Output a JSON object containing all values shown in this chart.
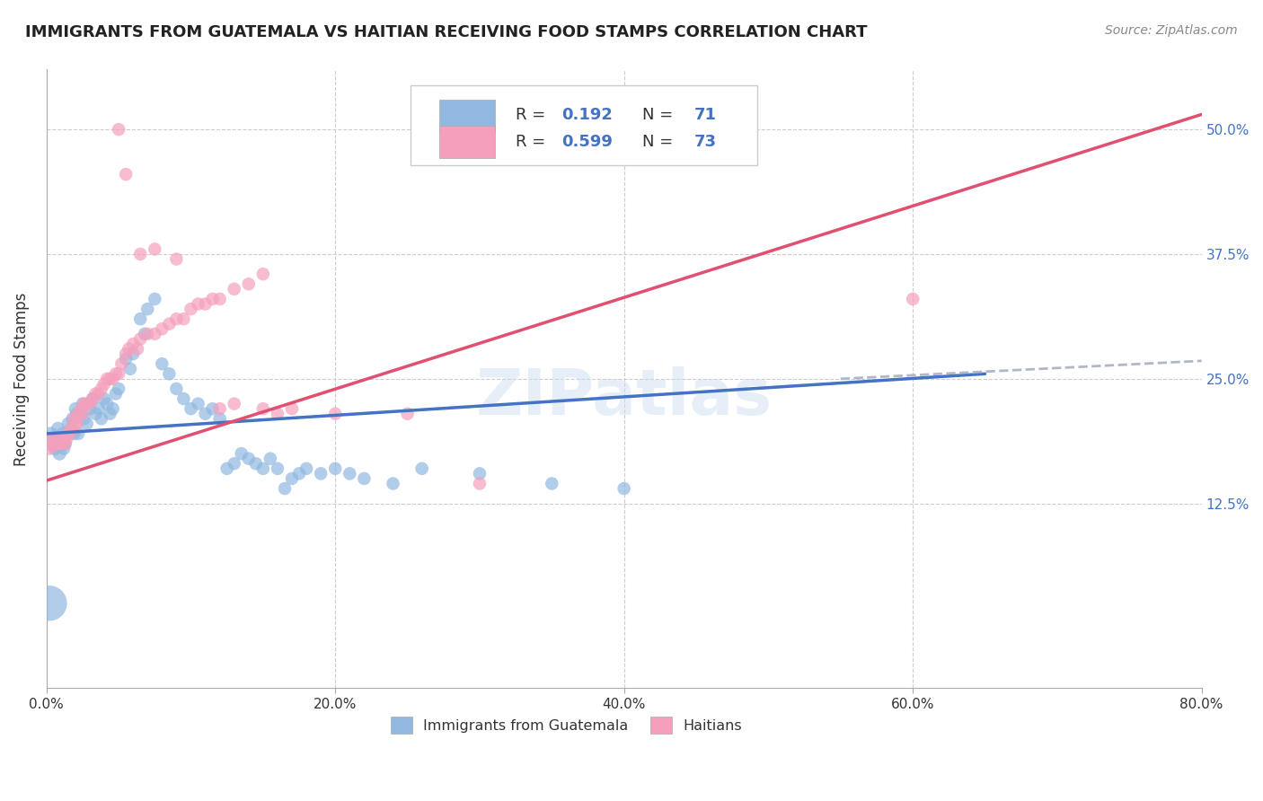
{
  "title": "IMMIGRANTS FROM GUATEMALA VS HAITIAN RECEIVING FOOD STAMPS CORRELATION CHART",
  "source": "Source: ZipAtlas.com",
  "ylabel": "Receiving Food Stamps",
  "ytick_values": [
    0.125,
    0.25,
    0.375,
    0.5
  ],
  "ytick_labels": [
    "12.5%",
    "25.0%",
    "37.5%",
    "50.0%"
  ],
  "xlim": [
    0.0,
    0.8
  ],
  "ylim": [
    -0.06,
    0.56
  ],
  "xtick_positions": [
    0.0,
    0.2,
    0.4,
    0.6,
    0.8
  ],
  "xtick_labels": [
    "0.0%",
    "20.0%",
    "40.0%",
    "60.0%",
    "80.0%"
  ],
  "watermark": "ZIPatlas",
  "guatemala_color": "#90b8e0",
  "haiti_color": "#f4a0bc",
  "line_guatemala_color": "#4472c4",
  "line_haiti_color": "#e05070",
  "line_ext_color": "#b0b8c8",
  "right_ytick_color": "#4472c4",
  "grid_color": "#cccccc",
  "guatemala_line": {
    "x0": 0.0,
    "y0": 0.195,
    "x1": 0.65,
    "y1": 0.255
  },
  "guatemala_line_ext": {
    "x0": 0.55,
    "y0": 0.25,
    "x1": 0.8,
    "y1": 0.268
  },
  "haiti_line": {
    "x0": 0.0,
    "y0": 0.148,
    "x1": 0.8,
    "y1": 0.515
  },
  "guatemala_scatter": [
    [
      0.003,
      0.195
    ],
    [
      0.005,
      0.185
    ],
    [
      0.006,
      0.18
    ],
    [
      0.007,
      0.19
    ],
    [
      0.008,
      0.2
    ],
    [
      0.009,
      0.175
    ],
    [
      0.01,
      0.185
    ],
    [
      0.011,
      0.195
    ],
    [
      0.012,
      0.18
    ],
    [
      0.013,
      0.185
    ],
    [
      0.015,
      0.205
    ],
    [
      0.016,
      0.195
    ],
    [
      0.017,
      0.2
    ],
    [
      0.018,
      0.21
    ],
    [
      0.019,
      0.195
    ],
    [
      0.02,
      0.22
    ],
    [
      0.021,
      0.215
    ],
    [
      0.022,
      0.195
    ],
    [
      0.024,
      0.215
    ],
    [
      0.025,
      0.225
    ],
    [
      0.026,
      0.21
    ],
    [
      0.028,
      0.205
    ],
    [
      0.03,
      0.22
    ],
    [
      0.032,
      0.23
    ],
    [
      0.034,
      0.215
    ],
    [
      0.036,
      0.22
    ],
    [
      0.038,
      0.21
    ],
    [
      0.04,
      0.23
    ],
    [
      0.042,
      0.225
    ],
    [
      0.044,
      0.215
    ],
    [
      0.046,
      0.22
    ],
    [
      0.048,
      0.235
    ],
    [
      0.05,
      0.24
    ],
    [
      0.055,
      0.27
    ],
    [
      0.058,
      0.26
    ],
    [
      0.06,
      0.275
    ],
    [
      0.065,
      0.31
    ],
    [
      0.068,
      0.295
    ],
    [
      0.07,
      0.32
    ],
    [
      0.075,
      0.33
    ],
    [
      0.08,
      0.265
    ],
    [
      0.085,
      0.255
    ],
    [
      0.09,
      0.24
    ],
    [
      0.095,
      0.23
    ],
    [
      0.1,
      0.22
    ],
    [
      0.105,
      0.225
    ],
    [
      0.11,
      0.215
    ],
    [
      0.115,
      0.22
    ],
    [
      0.12,
      0.21
    ],
    [
      0.125,
      0.16
    ],
    [
      0.13,
      0.165
    ],
    [
      0.135,
      0.175
    ],
    [
      0.14,
      0.17
    ],
    [
      0.145,
      0.165
    ],
    [
      0.15,
      0.16
    ],
    [
      0.155,
      0.17
    ],
    [
      0.16,
      0.16
    ],
    [
      0.165,
      0.14
    ],
    [
      0.17,
      0.15
    ],
    [
      0.175,
      0.155
    ],
    [
      0.18,
      0.16
    ],
    [
      0.19,
      0.155
    ],
    [
      0.2,
      0.16
    ],
    [
      0.21,
      0.155
    ],
    [
      0.22,
      0.15
    ],
    [
      0.24,
      0.145
    ],
    [
      0.26,
      0.16
    ],
    [
      0.3,
      0.155
    ],
    [
      0.35,
      0.145
    ],
    [
      0.4,
      0.14
    ],
    [
      0.002,
      0.025
    ]
  ],
  "haiti_scatter": [
    [
      0.003,
      0.19
    ],
    [
      0.005,
      0.185
    ],
    [
      0.006,
      0.185
    ],
    [
      0.007,
      0.185
    ],
    [
      0.008,
      0.185
    ],
    [
      0.009,
      0.185
    ],
    [
      0.01,
      0.19
    ],
    [
      0.011,
      0.185
    ],
    [
      0.012,
      0.19
    ],
    [
      0.013,
      0.185
    ],
    [
      0.014,
      0.19
    ],
    [
      0.015,
      0.195
    ],
    [
      0.016,
      0.195
    ],
    [
      0.017,
      0.2
    ],
    [
      0.018,
      0.2
    ],
    [
      0.019,
      0.21
    ],
    [
      0.02,
      0.205
    ],
    [
      0.021,
      0.205
    ],
    [
      0.022,
      0.215
    ],
    [
      0.024,
      0.22
    ],
    [
      0.025,
      0.215
    ],
    [
      0.026,
      0.225
    ],
    [
      0.028,
      0.225
    ],
    [
      0.03,
      0.225
    ],
    [
      0.032,
      0.23
    ],
    [
      0.034,
      0.235
    ],
    [
      0.036,
      0.235
    ],
    [
      0.038,
      0.24
    ],
    [
      0.04,
      0.245
    ],
    [
      0.042,
      0.25
    ],
    [
      0.044,
      0.25
    ],
    [
      0.046,
      0.25
    ],
    [
      0.048,
      0.255
    ],
    [
      0.05,
      0.255
    ],
    [
      0.052,
      0.265
    ],
    [
      0.055,
      0.275
    ],
    [
      0.057,
      0.28
    ],
    [
      0.06,
      0.285
    ],
    [
      0.063,
      0.28
    ],
    [
      0.065,
      0.29
    ],
    [
      0.07,
      0.295
    ],
    [
      0.075,
      0.295
    ],
    [
      0.08,
      0.3
    ],
    [
      0.085,
      0.305
    ],
    [
      0.09,
      0.31
    ],
    [
      0.095,
      0.31
    ],
    [
      0.1,
      0.32
    ],
    [
      0.105,
      0.325
    ],
    [
      0.11,
      0.325
    ],
    [
      0.115,
      0.33
    ],
    [
      0.12,
      0.33
    ],
    [
      0.13,
      0.34
    ],
    [
      0.14,
      0.345
    ],
    [
      0.15,
      0.355
    ],
    [
      0.05,
      0.5
    ],
    [
      0.055,
      0.455
    ],
    [
      0.065,
      0.375
    ],
    [
      0.075,
      0.38
    ],
    [
      0.09,
      0.37
    ],
    [
      0.12,
      0.22
    ],
    [
      0.13,
      0.225
    ],
    [
      0.15,
      0.22
    ],
    [
      0.16,
      0.215
    ],
    [
      0.17,
      0.22
    ],
    [
      0.2,
      0.215
    ],
    [
      0.25,
      0.215
    ],
    [
      0.3,
      0.145
    ],
    [
      0.6,
      0.33
    ],
    [
      0.002,
      0.18
    ],
    [
      0.004,
      0.183
    ]
  ]
}
